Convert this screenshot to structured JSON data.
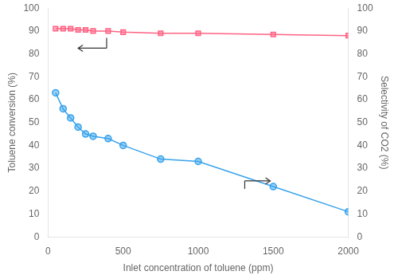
{
  "chart_data": {
    "type": "line",
    "xlabel": "Inlet concentration of toluene (ppm)",
    "ylabel": "Toluene conversion (%)",
    "y2label": "Selectivity of CO2 (%)",
    "x": [
      50,
      100,
      150,
      200,
      250,
      300,
      400,
      500,
      750,
      1000,
      1500,
      2000
    ],
    "series": [
      {
        "values": [
          63,
          56,
          52,
          48,
          45,
          44,
          43,
          40,
          34,
          33,
          22,
          11
        ],
        "marker": "circle",
        "line_style": "solid"
      },
      {
        "values": [
          91,
          91,
          91,
          90.5,
          90.5,
          90,
          90,
          89.5,
          89,
          89,
          88.5,
          88
        ],
        "marker": "square",
        "line_style": "solid",
        "axis": "y2"
      }
    ],
    "xlim": [
      0,
      2000
    ],
    "xticks": [
      0,
      500,
      1000,
      1500,
      2000
    ],
    "ylim": [
      0,
      100
    ],
    "yticks": [
      0,
      10,
      20,
      30,
      40,
      50,
      60,
      70,
      80,
      90,
      100
    ],
    "y2lim": [
      0,
      100
    ],
    "y2ticks": [
      0,
      10,
      20,
      30,
      40,
      50,
      60,
      70,
      80,
      90,
      100
    ],
    "grid": false
  }
}
